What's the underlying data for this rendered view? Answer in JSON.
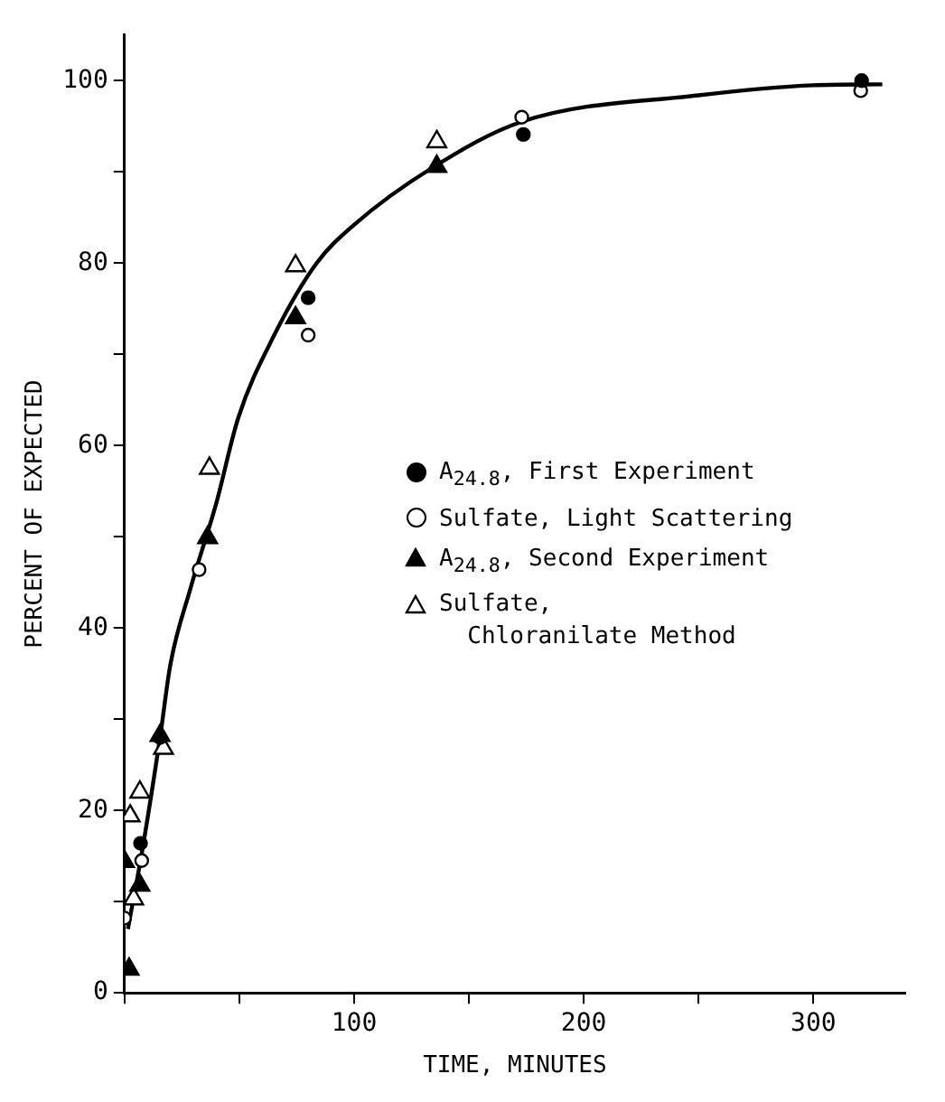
{
  "chart_data": {
    "type": "scatter",
    "xlabel": "TIME, MINUTES",
    "ylabel": "PERCENT OF EXPECTED",
    "xlim": [
      0,
      340
    ],
    "ylim": [
      0,
      105
    ],
    "xticks": [
      {
        "value": 0,
        "label": null
      },
      {
        "value": 50,
        "label": null
      },
      100,
      {
        "value": 150,
        "label": null
      },
      200,
      {
        "value": 250,
        "label": null
      },
      300
    ],
    "yticks": [
      0,
      {
        "value": 10,
        "label": null
      },
      20,
      {
        "value": 30,
        "label": null
      },
      40,
      {
        "value": 50,
        "label": null
      },
      60,
      {
        "value": 70,
        "label": null
      },
      80,
      {
        "value": 90,
        "label": null
      },
      100
    ],
    "grid": false,
    "legend": "right",
    "series": [
      {
        "name": "A$_{24.8}$, First Experiment",
        "marker": "circle",
        "color": "#000000",
        "x": [
          7,
          15.5,
          80,
          173.7,
          321
        ],
        "values": [
          16.4,
          28,
          76.2,
          94.1,
          100
        ]
      },
      {
        "name": "Sulfate, Light Scattering",
        "marker": "circle",
        "color": "#ffffff",
        "x": [
          0,
          7.5,
          32.5,
          80,
          173,
          320.6
        ],
        "values": [
          8.2,
          14.5,
          46.4,
          72.1,
          96,
          98.9
        ]
      },
      {
        "name": "A$_{24.8}$, Second Experiment",
        "marker": "triangle",
        "color": "#000000",
        "x": [
          0,
          2,
          6.7,
          15.5,
          36.2,
          74.5,
          136
        ],
        "values": [
          14.4,
          2.6,
          11.8,
          28.2,
          49.9,
          74,
          90.6
        ]
      },
      {
        "name": "Sulfate,\n  Chloranilate Method",
        "marker": "triangle",
        "color": "#ffffff",
        "x": [
          2.5,
          4,
          6.7,
          17,
          37,
          74.5,
          136
        ],
        "values": [
          19.4,
          10.3,
          22,
          26.8,
          57.5,
          79.7,
          93.3
        ]
      },
      {
        "type": "line",
        "marker": "none",
        "color": "#000000",
        "x": [
          1.5,
          8,
          15.5,
          20,
          28.7,
          40,
          49.5,
          65,
          83.7,
          100,
          133.7,
          173,
          250,
          300,
          330
        ],
        "values": [
          7,
          16,
          28,
          36,
          44.3,
          53.7,
          63,
          72,
          80,
          84.2,
          90.4,
          95.5,
          98.4,
          99.5,
          99.6
        ]
      }
    ]
  }
}
